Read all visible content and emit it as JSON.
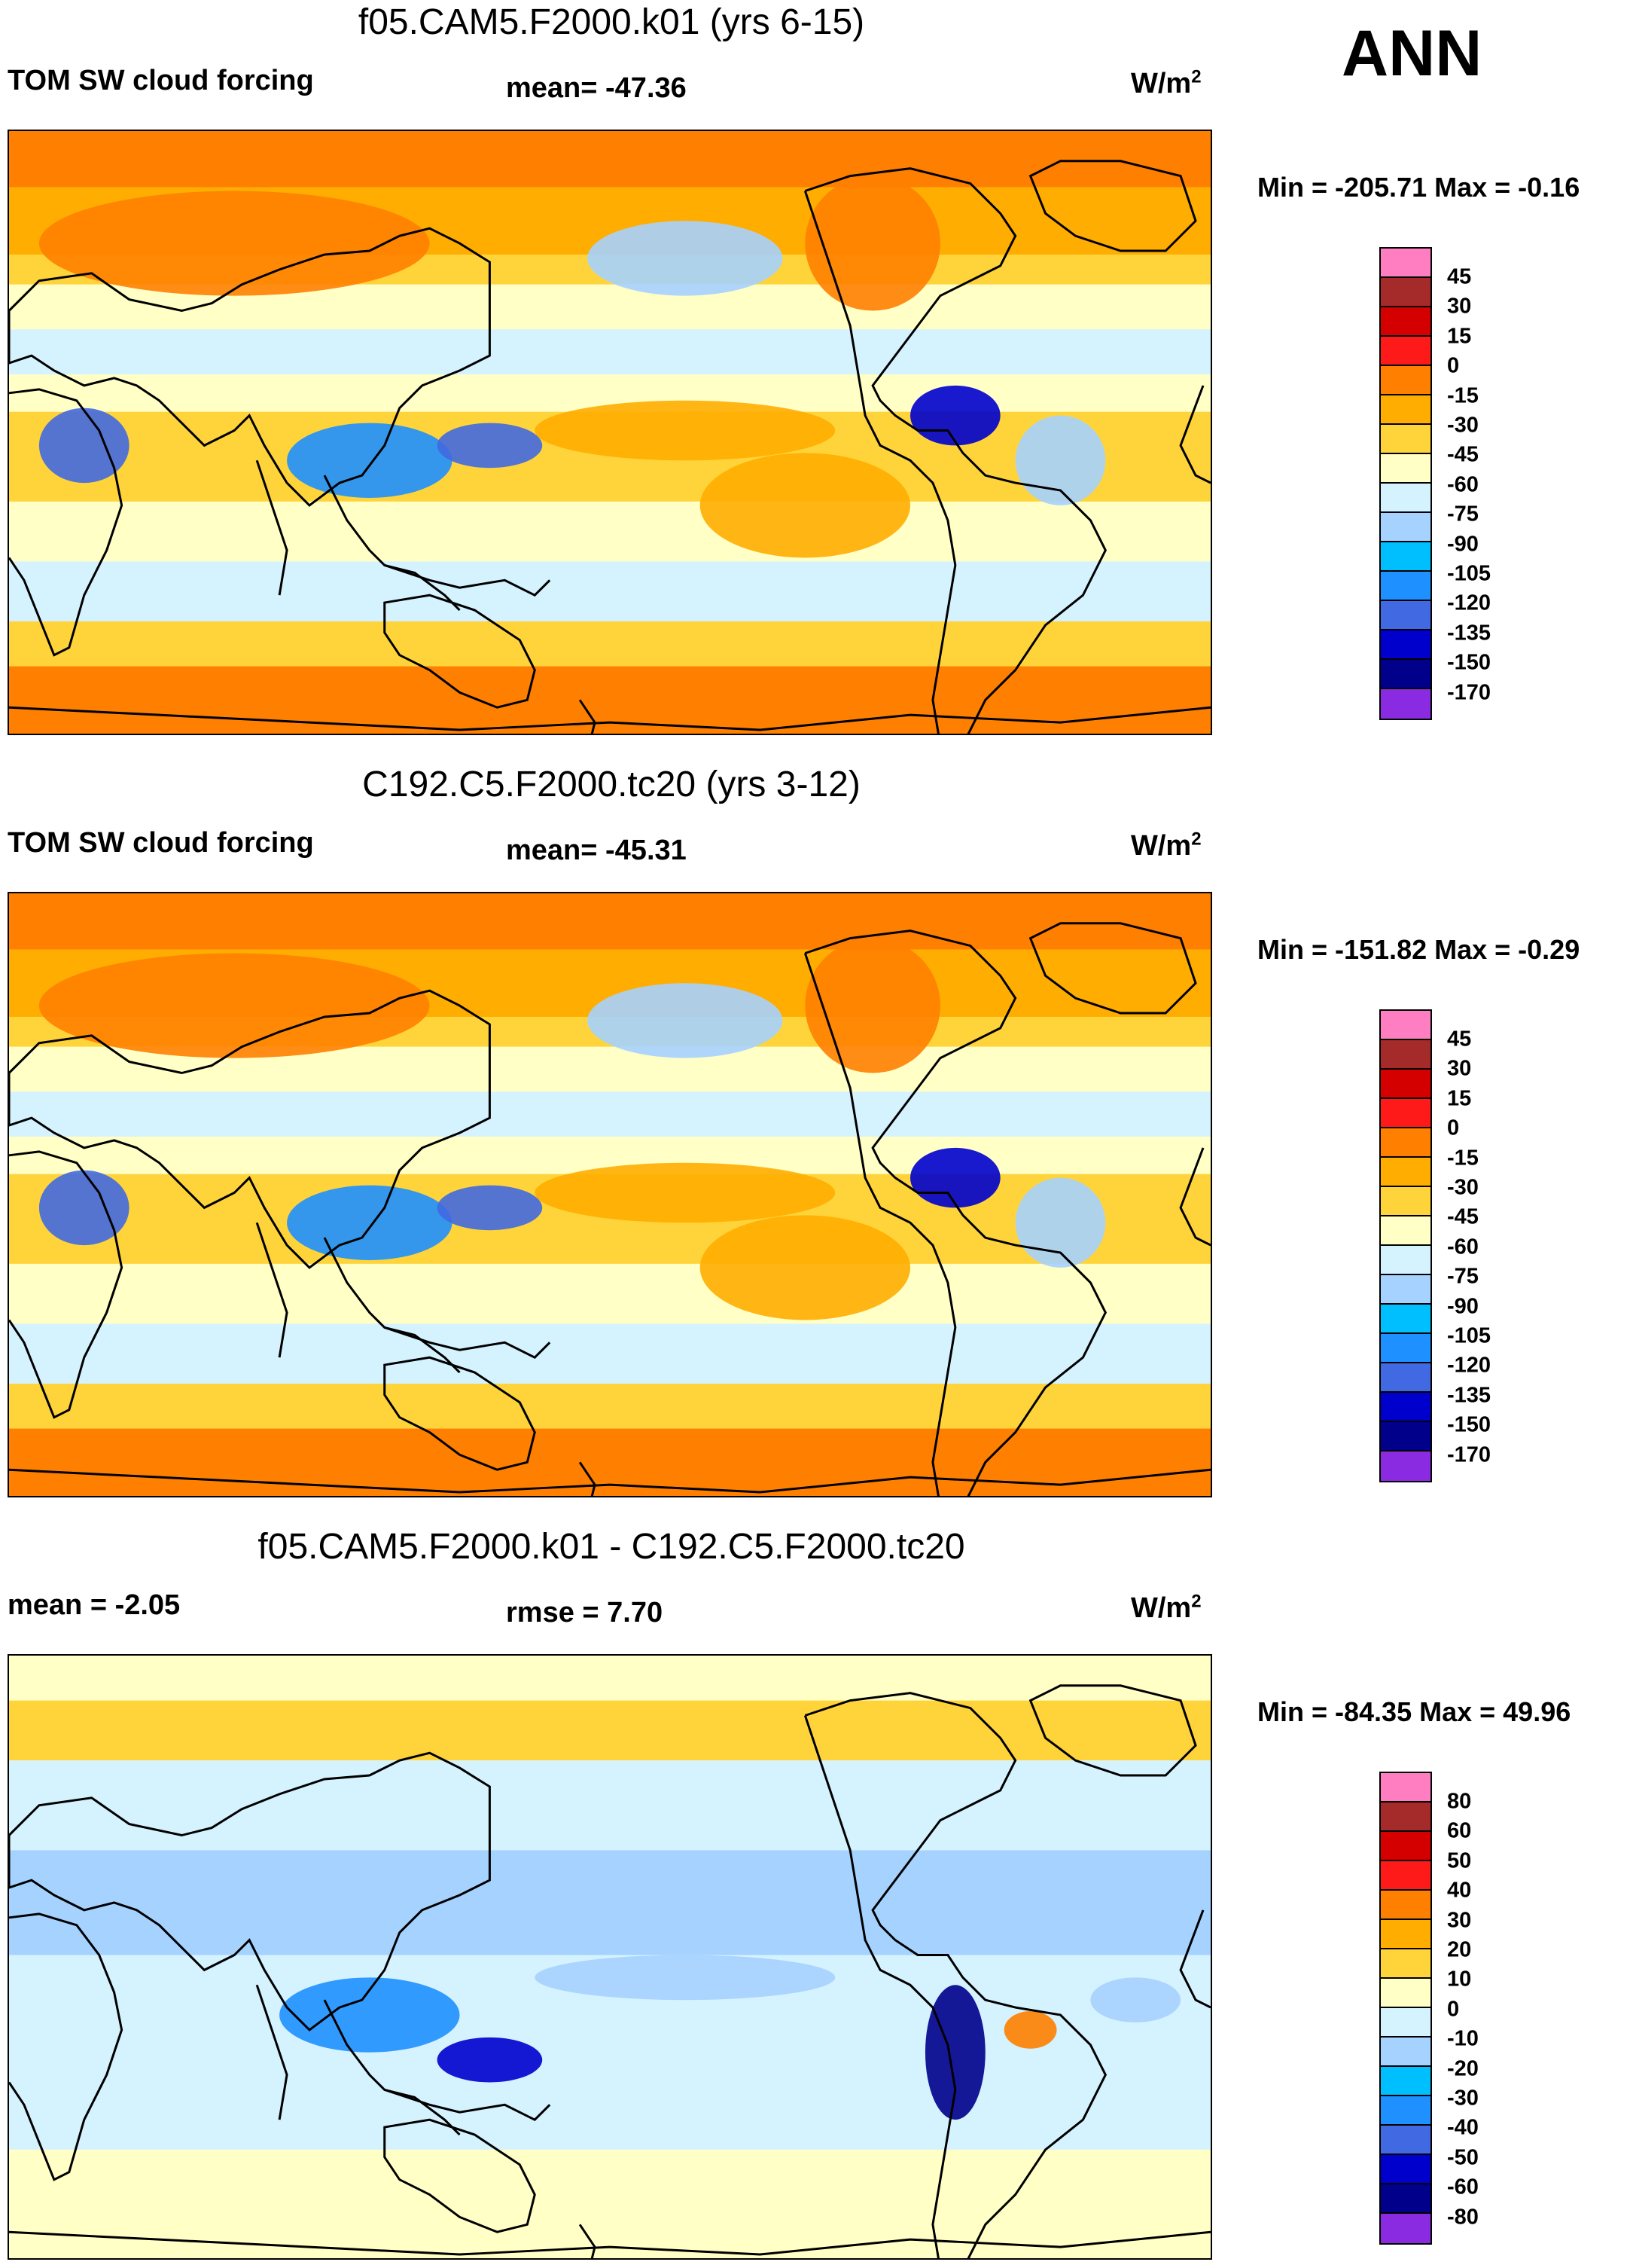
{
  "season_label": "ANN",
  "colors": {
    "abs_scale": [
      "#ff7ec1",
      "#a52a2a",
      "#d40000",
      "#ff1a1a",
      "#ff7f00",
      "#ffad00",
      "#ffd43a",
      "#ffffc6",
      "#d5f2ff",
      "#a6d2ff",
      "#00bfff",
      "#1e90ff",
      "#4169e1",
      "#0000cd",
      "#00008b",
      "#8a2be2"
    ],
    "diff_scale": [
      "#ff7ec1",
      "#a52a2a",
      "#d40000",
      "#ff1a1a",
      "#ff7f00",
      "#ffad00",
      "#ffd43a",
      "#ffffc6",
      "#d5f2ff",
      "#a6d2ff",
      "#00bfff",
      "#1e90ff",
      "#4169e1",
      "#0000cd",
      "#00008b",
      "#8a2be2"
    ]
  },
  "panels": [
    {
      "title": "f05.CAM5.F2000.k01 (yrs 6-15)",
      "left_label": "TOM SW cloud forcing",
      "center_label": "mean= -47.36",
      "units": "W/m",
      "units_sup": "2",
      "minmax": "Min = -205.71 Max =  -0.16",
      "colorbar_ticks": [
        "45",
        "30",
        "15",
        "0",
        "-15",
        "-30",
        "-45",
        "-60",
        "-75",
        "-90",
        "-105",
        "-120",
        "-135",
        "-150",
        "-170"
      ]
    },
    {
      "title": "C192.C5.F2000.tc20 (yrs 3-12)",
      "left_label": "TOM SW cloud forcing",
      "center_label": "mean= -45.31",
      "units": "W/m",
      "units_sup": "2",
      "minmax": "Min = -151.82 Max =  -0.29",
      "colorbar_ticks": [
        "45",
        "30",
        "15",
        "0",
        "-15",
        "-30",
        "-45",
        "-60",
        "-75",
        "-90",
        "-105",
        "-120",
        "-135",
        "-150",
        "-170"
      ]
    },
    {
      "title": "f05.CAM5.F2000.k01 - C192.C5.F2000.tc20",
      "left_label": "mean =  -2.05",
      "center_label": "rmse =   7.70",
      "units": "W/m",
      "units_sup": "2",
      "minmax": "Min = -84.35 Max =  49.96",
      "colorbar_ticks": [
        "80",
        "60",
        "50",
        "40",
        "30",
        "20",
        "10",
        "0",
        "-10",
        "-20",
        "-30",
        "-40",
        "-50",
        "-60",
        "-80"
      ]
    }
  ]
}
